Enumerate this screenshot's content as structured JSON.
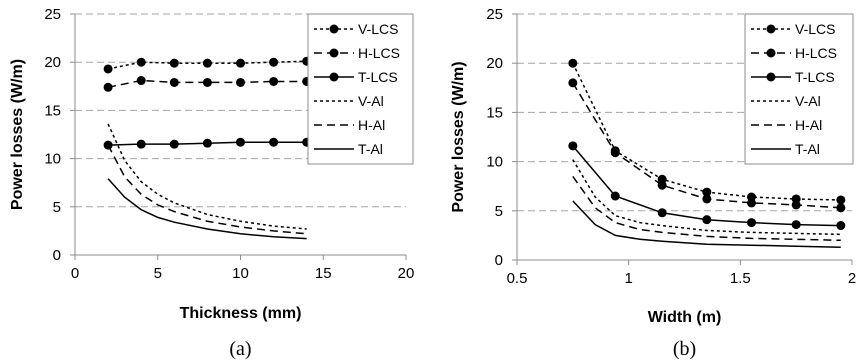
{
  "chart_data": [
    {
      "type": "line",
      "caption": "(a)",
      "xlabel": "Thickness (mm)",
      "ylabel": "Power losses (W/m)",
      "xlim": [
        0,
        20
      ],
      "ylim": [
        0,
        25
      ],
      "xticks": [
        0,
        5,
        10,
        15,
        20
      ],
      "yticks": [
        0,
        5,
        10,
        15,
        20,
        25
      ],
      "grid": "horizontal-dashed",
      "legend_position": "top-right",
      "series": [
        {
          "name": "V-LCS",
          "style": "short-dash",
          "markers": true,
          "x": [
            2,
            4,
            6,
            8,
            10,
            12,
            14
          ],
          "y": [
            19.3,
            20.0,
            19.9,
            19.9,
            19.9,
            20.0,
            20.1
          ]
        },
        {
          "name": "H-LCS",
          "style": "long-dash",
          "markers": true,
          "x": [
            2,
            4,
            6,
            8,
            10,
            12,
            14
          ],
          "y": [
            17.4,
            18.1,
            17.9,
            17.9,
            17.9,
            18.0,
            18.0
          ]
        },
        {
          "name": "T-LCS",
          "style": "solid",
          "markers": true,
          "x": [
            2,
            4,
            6,
            8,
            10,
            12,
            14
          ],
          "y": [
            11.4,
            11.5,
            11.5,
            11.6,
            11.7,
            11.7,
            11.7
          ]
        },
        {
          "name": "V-Al",
          "style": "short-dash",
          "markers": false,
          "x": [
            2,
            3,
            4,
            5,
            6,
            8,
            10,
            12,
            14
          ],
          "y": [
            13.6,
            9.8,
            7.6,
            6.3,
            5.4,
            4.2,
            3.5,
            3.0,
            2.7
          ]
        },
        {
          "name": "H-Al",
          "style": "long-dash",
          "markers": false,
          "x": [
            2,
            3,
            4,
            5,
            6,
            8,
            10,
            12,
            14
          ],
          "y": [
            11.4,
            8.1,
            6.3,
            5.2,
            4.5,
            3.5,
            2.9,
            2.5,
            2.2
          ]
        },
        {
          "name": "T-Al",
          "style": "solid",
          "markers": false,
          "x": [
            2,
            3,
            4,
            5,
            6,
            8,
            10,
            12,
            14
          ],
          "y": [
            7.9,
            6.0,
            4.7,
            3.9,
            3.4,
            2.7,
            2.2,
            1.9,
            1.7
          ]
        }
      ]
    },
    {
      "type": "line",
      "caption": "(b)",
      "xlabel": "Width (m)",
      "ylabel": "Power losses (W/m)",
      "xlim": [
        0.5,
        2
      ],
      "ylim": [
        0,
        25
      ],
      "xticks": [
        0.5,
        1,
        1.5,
        2
      ],
      "yticks": [
        0,
        5,
        10,
        15,
        20,
        25
      ],
      "grid": "horizontal-dashed",
      "legend_position": "top-right",
      "series": [
        {
          "name": "V-LCS",
          "style": "short-dash",
          "markers": true,
          "x": [
            0.75,
            0.94,
            1.15,
            1.35,
            1.55,
            1.75,
            1.95
          ],
          "y": [
            20.0,
            11.1,
            8.2,
            6.9,
            6.4,
            6.2,
            6.1
          ]
        },
        {
          "name": "H-LCS",
          "style": "long-dash",
          "markers": true,
          "x": [
            0.75,
            0.94,
            1.15,
            1.35,
            1.55,
            1.75,
            1.95
          ],
          "y": [
            18.0,
            10.9,
            7.6,
            6.2,
            5.8,
            5.6,
            5.3
          ]
        },
        {
          "name": "T-LCS",
          "style": "solid",
          "markers": true,
          "x": [
            0.75,
            0.94,
            1.15,
            1.35,
            1.55,
            1.75,
            1.95
          ],
          "y": [
            11.6,
            6.5,
            4.8,
            4.1,
            3.8,
            3.6,
            3.5
          ]
        },
        {
          "name": "V-Al",
          "style": "short-dash",
          "markers": false,
          "x": [
            0.75,
            0.85,
            0.94,
            1.05,
            1.15,
            1.35,
            1.55,
            1.75,
            1.95
          ],
          "y": [
            10.2,
            6.4,
            4.5,
            3.8,
            3.5,
            3.0,
            2.8,
            2.7,
            2.6
          ]
        },
        {
          "name": "H-Al",
          "style": "long-dash",
          "markers": false,
          "x": [
            0.75,
            0.85,
            0.94,
            1.05,
            1.15,
            1.35,
            1.55,
            1.75,
            1.95
          ],
          "y": [
            8.5,
            5.3,
            3.8,
            3.1,
            2.8,
            2.4,
            2.2,
            2.1,
            2.0
          ]
        },
        {
          "name": "T-Al",
          "style": "solid",
          "markers": false,
          "x": [
            0.75,
            0.85,
            0.94,
            1.05,
            1.15,
            1.35,
            1.55,
            1.75,
            1.95
          ],
          "y": [
            6.0,
            3.6,
            2.5,
            2.1,
            1.9,
            1.6,
            1.5,
            1.4,
            1.3
          ]
        }
      ]
    }
  ]
}
